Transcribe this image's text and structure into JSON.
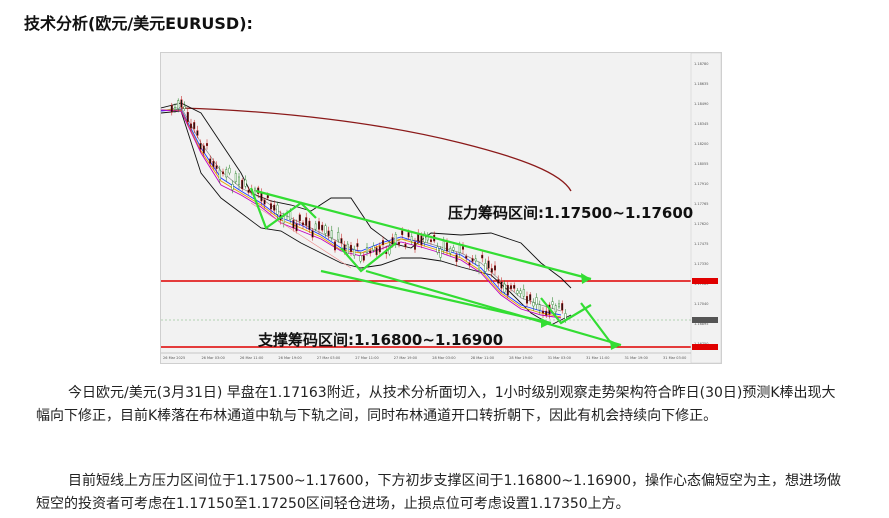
{
  "title": "技术分析(欧元/美元EURUSD):",
  "chart": {
    "resistance_label": "压力筹码区间:1.17500~1.17600",
    "support_label": "支撑筹码区间:1.16800~1.16900",
    "colors": {
      "background": "#f2f2f2",
      "horizontal_lines": "#e00000",
      "arrows": "#33dd33",
      "ma_long": "#8b1a1a",
      "bollinger": "#000000",
      "ma_fast": "#1f3cff",
      "ma_mid": "#e8a000",
      "ma_slow": "#c000c0"
    },
    "y_ticks": [
      "1.18780",
      "1.18635",
      "1.18490",
      "1.18345",
      "1.18200",
      "1.18055",
      "1.17910",
      "1.17765",
      "1.17620",
      "1.17475",
      "1.17330",
      "1.17185",
      "1.17040",
      "1.16895",
      "1.16750"
    ],
    "x_ticks": [
      "26 Mar 2025",
      "26 Mar 03:00",
      "26 Mar 11:00",
      "26 Mar 19:00",
      "27 Mar 03:00",
      "27 Mar 11:00",
      "27 Mar 19:00",
      "28 Mar 03:00",
      "28 Mar 11:00",
      "28 Mar 19:00",
      "31 Mar 03:00",
      "31 Mar 11:00",
      "31 Mar 19:00",
      "31 Mar 03:00"
    ]
  },
  "paragraphs": [
    "今日欧元/美元(3月31日) 早盘在1.17163附近，从技术分析面切入，1小时级别观察走势架构符合昨日(30日)预测K棒出现大幅向下修正，目前K棒落在布林通道中轨与下轨之间，同时布林通道开口转折朝下，因此有机会持续向下修正。",
    "目前短线上方压力区间位于1.17500~1.17600，下方初步支撑区间于1.16800~1.16900，操作心态偏短空为主，想进场做短空的投资者可考虑在1.17150至1.17250区间轻仓进场，止损点位可考虑设置1.17350上方。"
  ]
}
